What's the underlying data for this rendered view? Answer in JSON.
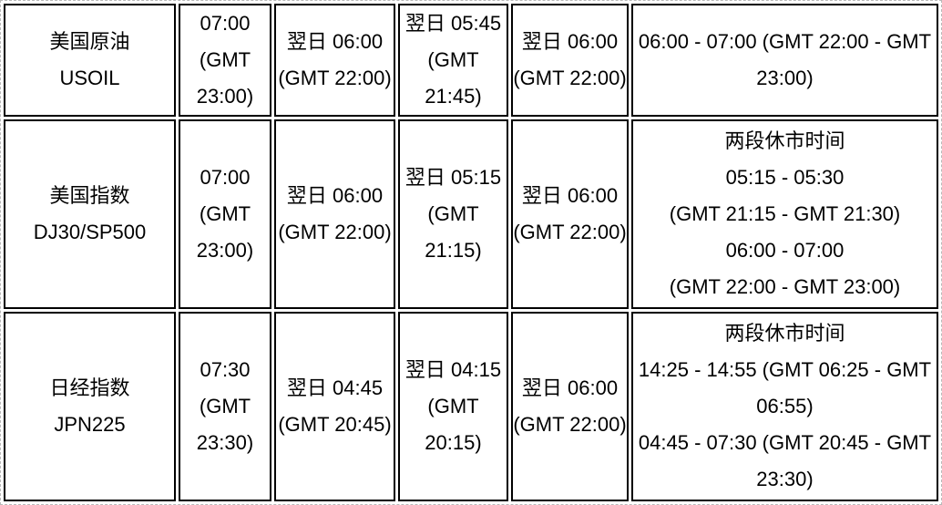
{
  "colors": {
    "cell_border": "#000000",
    "outer_gridline": "#b9b9b9",
    "background": "#ffffff",
    "text": "#000000"
  },
  "table": {
    "rows": [
      {
        "cells": [
          {
            "lines": [
              "美国原油",
              "USOIL"
            ]
          },
          {
            "lines": [
              "07:00",
              "(GMT",
              "23:00)"
            ]
          },
          {
            "lines": [
              "翌日 06:00",
              "(GMT 22:00)"
            ]
          },
          {
            "lines": [
              "翌日 05:45",
              "(GMT",
              "21:45)"
            ]
          },
          {
            "lines": [
              "翌日 06:00",
              "(GMT 22:00)"
            ]
          },
          {
            "lines": [
              "06:00 - 07:00 (GMT 22:00 - GMT",
              "23:00)"
            ]
          }
        ]
      },
      {
        "cells": [
          {
            "lines": [
              "美国指数",
              "DJ30/SP500"
            ]
          },
          {
            "lines": [
              "07:00",
              "(GMT",
              "23:00)"
            ]
          },
          {
            "lines": [
              "翌日 06:00",
              "(GMT 22:00)"
            ]
          },
          {
            "lines": [
              "翌日 05:15",
              "(GMT",
              "21:15)"
            ]
          },
          {
            "lines": [
              "翌日 06:00",
              "(GMT 22:00)"
            ]
          },
          {
            "lines": [
              "两段休市时间",
              "05:15 - 05:30",
              "(GMT 21:15 - GMT 21:30)",
              "06:00 - 07:00",
              "(GMT 22:00 - GMT 23:00)"
            ]
          }
        ]
      },
      {
        "cells": [
          {
            "lines": [
              "日经指数",
              "JPN225"
            ]
          },
          {
            "lines": [
              "07:30",
              "(GMT",
              "23:30)"
            ]
          },
          {
            "lines": [
              "翌日 04:45",
              "(GMT 20:45)"
            ]
          },
          {
            "lines": [
              "翌日 04:15",
              "(GMT",
              "20:15)"
            ]
          },
          {
            "lines": [
              "翌日 06:00",
              "(GMT 22:00)"
            ]
          },
          {
            "lines": [
              "两段休市时间",
              "14:25 - 14:55 (GMT 06:25 - GMT",
              "06:55)",
              "04:45 - 07:30 (GMT 20:45 - GMT",
              "23:30)"
            ]
          }
        ]
      }
    ]
  }
}
